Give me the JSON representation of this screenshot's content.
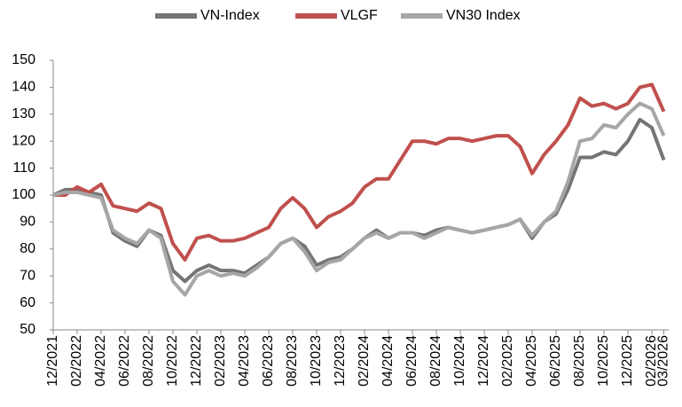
{
  "chart_data": {
    "type": "line",
    "categories": [
      "12/2021",
      "01/2022",
      "02/2022",
      "03/2022",
      "04/2022",
      "05/2022",
      "06/2022",
      "07/2022",
      "08/2022",
      "09/2022",
      "10/2022",
      "11/2022",
      "12/2022",
      "01/2023",
      "02/2023",
      "03/2023",
      "04/2023",
      "05/2023",
      "06/2023",
      "07/2023",
      "08/2023",
      "09/2023",
      "10/2023",
      "11/2023",
      "12/2023",
      "01/2024",
      "02/2024",
      "03/2024",
      "04/2024",
      "05/2024",
      "06/2024",
      "07/2024",
      "08/2024",
      "09/2024",
      "10/2024",
      "11/2024",
      "12/2024",
      "01/2025",
      "02/2025",
      "03/2025",
      "04/2025",
      "05/2025",
      "06/2025",
      "07/2025",
      "08/2025",
      "09/2025",
      "10/2025",
      "11/2025",
      "12/2025",
      "01/2026",
      "02/2026",
      "03/2026"
    ],
    "xticks": [
      "12/2021",
      "02/2022",
      "04/2022",
      "06/2022",
      "08/2022",
      "10/2022",
      "12/2022",
      "02/2023",
      "04/2023",
      "06/2023",
      "08/2023",
      "10/2023",
      "12/2023",
      "02/2024",
      "04/2024",
      "06/2024",
      "08/2024",
      "10/2024",
      "12/2024",
      "02/2025",
      "04/2025",
      "06/2025",
      "08/2025",
      "10/2025",
      "12/2025",
      "02/2026",
      "03/2026"
    ],
    "series": [
      {
        "name": "VN-Index",
        "color": "#757575",
        "values": [
          100,
          102,
          102,
          101,
          100,
          86,
          83,
          81,
          87,
          85,
          72,
          68,
          72,
          74,
          72,
          72,
          71,
          74,
          77,
          82,
          84,
          81,
          74,
          76,
          77,
          80,
          84,
          87,
          84,
          86,
          86,
          85,
          87,
          88,
          87,
          86,
          87,
          88,
          89,
          91,
          84,
          90,
          93,
          102,
          114,
          114,
          116,
          115,
          120,
          128,
          125,
          113
        ]
      },
      {
        "name": "VLGF",
        "color": "#c0504d",
        "values": [
          100,
          100,
          103,
          101,
          104,
          96,
          95,
          94,
          97,
          95,
          82,
          76,
          84,
          85,
          83,
          83,
          84,
          86,
          88,
          95,
          99,
          95,
          88,
          92,
          94,
          97,
          103,
          106,
          106,
          113,
          120,
          120,
          119,
          121,
          121,
          120,
          121,
          122,
          122,
          118,
          108,
          115,
          120,
          126,
          136,
          133,
          134,
          132,
          134,
          140,
          141,
          131
        ]
      },
      {
        "name": "VN30 Index",
        "color": "#a6a6a6",
        "values": [
          100,
          101,
          101,
          100,
          99,
          87,
          84,
          82,
          87,
          84,
          68,
          63,
          70,
          72,
          70,
          71,
          70,
          73,
          77,
          82,
          84,
          79,
          72,
          75,
          76,
          80,
          84,
          86,
          84,
          86,
          86,
          84,
          86,
          88,
          87,
          86,
          87,
          88,
          89,
          91,
          85,
          90,
          94,
          105,
          120,
          121,
          126,
          125,
          130,
          134,
          132,
          122
        ]
      }
    ],
    "ylim": [
      50,
      150
    ],
    "yticks": [
      50,
      60,
      70,
      80,
      90,
      100,
      110,
      120,
      130,
      140,
      150
    ],
    "grid": false,
    "legend": "top"
  }
}
